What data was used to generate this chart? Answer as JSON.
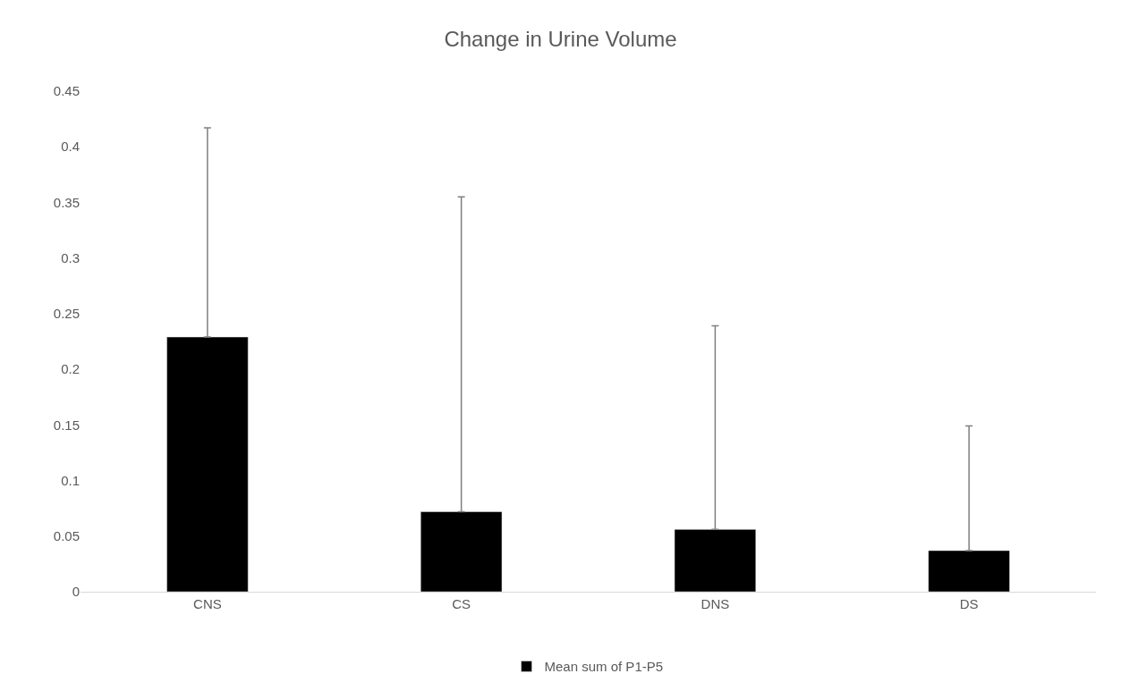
{
  "chart_data": {
    "type": "bar",
    "title": "Change in Urine Volume",
    "categories": [
      "CNS",
      "CS",
      "DNS",
      "DS"
    ],
    "series": [
      {
        "name": "Mean sum of P1-P5",
        "color": "#000000",
        "values": [
          0.229,
          0.072,
          0.056,
          0.037
        ],
        "errors": [
          [
            0.229,
            0.417
          ],
          [
            0.072,
            0.355
          ],
          [
            0.056,
            0.239
          ],
          [
            0.037,
            0.149
          ]
        ]
      }
    ],
    "ylim": [
      0,
      0.45
    ],
    "yticks": [
      0,
      0.05,
      0.1,
      0.15,
      0.2,
      0.25,
      0.3,
      0.35,
      0.4,
      0.45
    ],
    "grid": false,
    "legend": "bottom"
  }
}
